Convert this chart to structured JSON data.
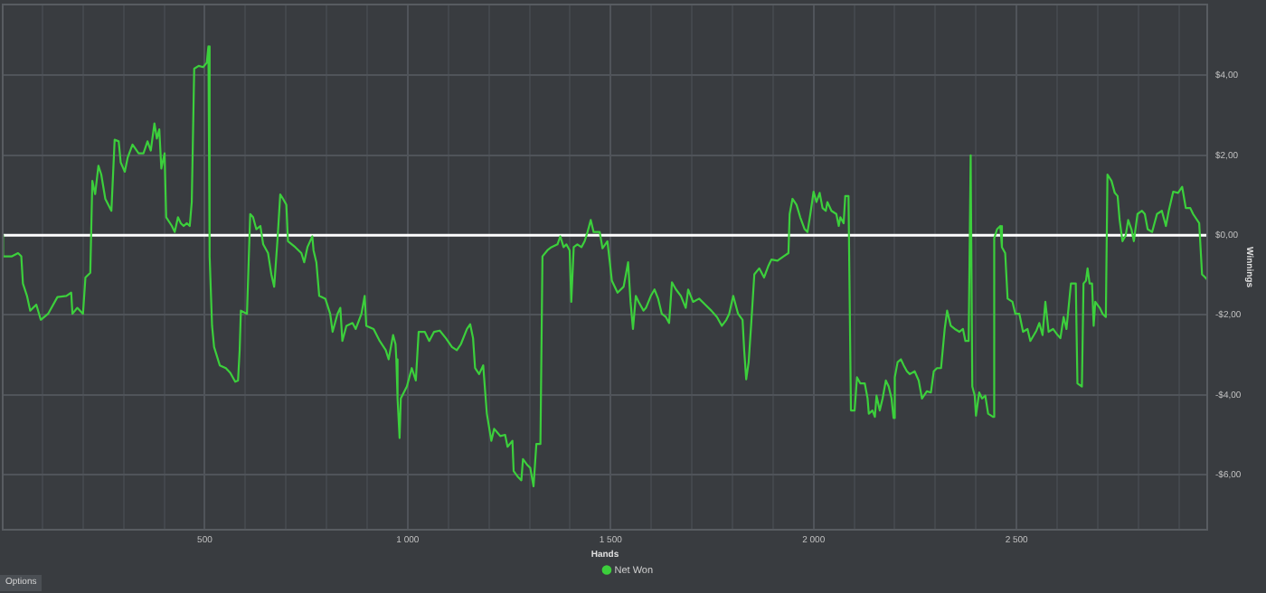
{
  "chart_data": {
    "type": "line",
    "xlabel": "Hands",
    "ylabel": "Winnings",
    "x": [
      0,
      3,
      25,
      40,
      48,
      52,
      62,
      70,
      85,
      96,
      114,
      137,
      159,
      171,
      174,
      186,
      200,
      206,
      218,
      223,
      230,
      238,
      245,
      255,
      270,
      278,
      288,
      293,
      303,
      310,
      322,
      337,
      349,
      359,
      367,
      376,
      382,
      388,
      393,
      401,
      405,
      419,
      426,
      434,
      441,
      448,
      456,
      463,
      468,
      474,
      485,
      496,
      505,
      509,
      512,
      518,
      523,
      537,
      552,
      563,
      575,
      582,
      586,
      589,
      604,
      612,
      619,
      627,
      637,
      644,
      656,
      664,
      671,
      679,
      686,
      693,
      701,
      705,
      723,
      738,
      745,
      753,
      765,
      768,
      775,
      782,
      797,
      809,
      815,
      827,
      834,
      839,
      849,
      864,
      872,
      886,
      894,
      898,
      916,
      931,
      946,
      953,
      964,
      970,
      972,
      975,
      980,
      983,
      998,
      1010,
      1020,
      1027,
      1042,
      1053,
      1065,
      1079,
      1094,
      1109,
      1121,
      1131,
      1146,
      1154,
      1161,
      1166,
      1176,
      1186,
      1191,
      1195,
      1206,
      1213,
      1228,
      1240,
      1246,
      1258,
      1261,
      1272,
      1280,
      1284,
      1295,
      1302,
      1310,
      1317,
      1327,
      1332,
      1344,
      1354,
      1369,
      1376,
      1384,
      1391,
      1399,
      1403,
      1409,
      1418,
      1428,
      1436,
      1443,
      1451,
      1458,
      1473,
      1480,
      1492,
      1498,
      1503,
      1517,
      1532,
      1543,
      1549,
      1555,
      1562,
      1569,
      1581,
      1587,
      1599,
      1608,
      1617,
      1626,
      1636,
      1644,
      1651,
      1661,
      1673,
      1685,
      1691,
      1703,
      1718,
      1733,
      1748,
      1762,
      1774,
      1785,
      1792,
      1802,
      1814,
      1825,
      1829,
      1834,
      1840,
      1846,
      1854,
      1866,
      1878,
      1889,
      1896,
      1911,
      1926,
      1938,
      1941,
      1948,
      1958,
      1967,
      1978,
      1985,
      1992,
      2000,
      2007,
      2015,
      2022,
      2030,
      2034,
      2044,
      2056,
      2062,
      2066,
      2074,
      2078,
      2086,
      2092,
      2101,
      2107,
      2115,
      2126,
      2133,
      2136,
      2145,
      2151,
      2155,
      2163,
      2170,
      2178,
      2185,
      2192,
      2197,
      2200,
      2207,
      2215,
      2222,
      2230,
      2237,
      2249,
      2259,
      2267,
      2279,
      2289,
      2296,
      2304,
      2314,
      2323,
      2329,
      2338,
      2348,
      2359,
      2368,
      2374,
      2382,
      2387,
      2391,
      2397,
      2400,
      2408,
      2415,
      2423,
      2430,
      2442,
      2445,
      2452,
      2460,
      2464,
      2472,
      2478,
      2490,
      2497,
      2507,
      2516,
      2527,
      2534,
      2549,
      2556,
      2564,
      2571,
      2579,
      2590,
      2601,
      2608,
      2616,
      2623,
      2634,
      2646,
      2650,
      2661,
      2665,
      2671,
      2675,
      2680,
      2686,
      2690,
      2694,
      2705,
      2712,
      2720,
      2724,
      2734,
      2742,
      2749,
      2754,
      2761,
      2769,
      2775,
      2783,
      2789,
      2798,
      2809,
      2816,
      2823,
      2834,
      2846,
      2858,
      2868,
      2875,
      2886,
      2898,
      2908,
      2917,
      2928,
      2935,
      2950,
      2957,
      2965,
      2972
    ],
    "series": [
      {
        "name": "Net Won",
        "color": "#3ccf3c",
        "values": [
          0.0,
          -0.53,
          -0.53,
          -0.45,
          -0.53,
          -1.21,
          -1.52,
          -1.89,
          -1.74,
          -2.12,
          -1.97,
          -1.55,
          -1.52,
          -1.44,
          -1.97,
          -1.82,
          -1.97,
          -1.06,
          -0.94,
          1.36,
          1.03,
          1.74,
          1.52,
          0.91,
          0.61,
          2.39,
          2.35,
          1.82,
          1.59,
          1.94,
          2.27,
          2.05,
          2.05,
          2.35,
          2.12,
          2.8,
          2.42,
          2.65,
          1.67,
          2.05,
          0.45,
          0.23,
          0.08,
          0.45,
          0.3,
          0.23,
          0.3,
          0.23,
          0.83,
          4.17,
          4.24,
          4.21,
          4.32,
          4.73,
          -0.53,
          -2.27,
          -2.8,
          -3.26,
          -3.33,
          -3.45,
          -3.67,
          -3.64,
          -2.88,
          -1.89,
          -1.97,
          0.53,
          0.45,
          0.15,
          0.23,
          -0.23,
          -0.45,
          -0.98,
          -1.29,
          -0.15,
          1.02,
          0.91,
          0.76,
          -0.15,
          -0.3,
          -0.45,
          -0.68,
          -0.3,
          -0.03,
          -0.38,
          -0.68,
          -1.52,
          -1.59,
          -1.97,
          -2.42,
          -1.97,
          -1.82,
          -2.65,
          -2.27,
          -2.2,
          -2.35,
          -1.97,
          -1.52,
          -2.27,
          -2.35,
          -2.65,
          -2.88,
          -3.11,
          -2.5,
          -2.73,
          -3.11,
          -4.09,
          -5.08,
          -4.09,
          -3.79,
          -3.33,
          -3.64,
          -2.42,
          -2.42,
          -2.65,
          -2.42,
          -2.39,
          -2.58,
          -2.8,
          -2.88,
          -2.73,
          -2.35,
          -2.23,
          -2.58,
          -3.33,
          -3.48,
          -3.26,
          -3.94,
          -4.47,
          -5.15,
          -4.85,
          -5.03,
          -5.0,
          -5.3,
          -5.15,
          -5.91,
          -6.06,
          -6.14,
          -5.61,
          -5.76,
          -5.83,
          -6.29,
          -5.23,
          -5.23,
          -0.53,
          -0.38,
          -0.3,
          -0.23,
          -0.03,
          -0.3,
          -0.23,
          -0.38,
          -1.67,
          -0.3,
          -0.23,
          -0.3,
          -0.15,
          0.08,
          0.38,
          0.08,
          0.08,
          -0.33,
          -0.15,
          -0.68,
          -1.14,
          -1.44,
          -1.29,
          -0.68,
          -1.67,
          -2.35,
          -1.52,
          -1.67,
          -1.89,
          -1.82,
          -1.52,
          -1.36,
          -1.59,
          -1.97,
          -2.05,
          -2.2,
          -1.18,
          -1.36,
          -1.52,
          -1.82,
          -1.36,
          -1.67,
          -1.59,
          -1.74,
          -1.89,
          -2.05,
          -2.27,
          -2.12,
          -1.97,
          -1.52,
          -1.97,
          -2.12,
          -2.88,
          -3.61,
          -3.18,
          -2.27,
          -0.98,
          -0.83,
          -1.06,
          -0.76,
          -0.61,
          -0.64,
          -0.53,
          -0.45,
          0.53,
          0.91,
          0.76,
          0.45,
          0.15,
          0.08,
          0.53,
          1.09,
          0.83,
          1.06,
          0.68,
          0.61,
          0.83,
          0.61,
          0.53,
          0.23,
          0.45,
          0.3,
          0.98,
          0.98,
          -4.39,
          -4.39,
          -3.56,
          -3.71,
          -3.71,
          -4.09,
          -4.47,
          -4.39,
          -4.55,
          -4.02,
          -4.39,
          -4.09,
          -3.64,
          -3.79,
          -4.09,
          -4.58,
          -3.56,
          -3.18,
          -3.11,
          -3.26,
          -3.41,
          -3.48,
          -3.41,
          -3.64,
          -4.09,
          -3.91,
          -3.94,
          -3.41,
          -3.33,
          -3.33,
          -2.35,
          -1.89,
          -2.27,
          -2.35,
          -2.42,
          -2.35,
          -2.65,
          -2.65,
          2.0,
          -3.79,
          -4.02,
          -4.52,
          -3.94,
          -4.09,
          -4.02,
          -4.47,
          -4.55,
          -0.08,
          0.15,
          0.23,
          -0.3,
          -0.45,
          -1.59,
          -1.67,
          -1.97,
          -1.97,
          -2.42,
          -2.35,
          -2.65,
          -2.39,
          -2.2,
          -2.5,
          -1.67,
          -2.42,
          -2.35,
          -2.5,
          -2.58,
          -2.05,
          -2.35,
          -1.21,
          -1.21,
          -3.71,
          -3.79,
          -1.21,
          -1.14,
          -0.83,
          -1.21,
          -1.21,
          -2.27,
          -1.67,
          -1.82,
          -1.97,
          -2.05,
          1.52,
          1.36,
          1.06,
          0.98,
          0.38,
          -0.15,
          0.0,
          0.38,
          0.15,
          -0.15,
          0.53,
          0.61,
          0.53,
          0.15,
          0.08,
          0.53,
          0.61,
          0.23,
          0.61,
          1.09,
          1.06,
          1.21,
          0.68,
          0.68,
          0.53,
          0.3,
          -0.98,
          -1.06,
          -1.14
        ]
      }
    ],
    "xlim": [
      0,
      2972
    ],
    "xticks": [
      {
        "value": 100,
        "label": null
      },
      {
        "value": 200,
        "label": null
      },
      {
        "value": 300,
        "label": null
      },
      {
        "value": 400,
        "label": null
      },
      500,
      {
        "value": 600,
        "label": null
      },
      {
        "value": 700,
        "label": null
      },
      {
        "value": 800,
        "label": null
      },
      {
        "value": 900,
        "label": null
      },
      {
        "value": 1000,
        "label": "1 000"
      },
      {
        "value": 1100,
        "label": null
      },
      {
        "value": 1200,
        "label": null
      },
      {
        "value": 1300,
        "label": null
      },
      {
        "value": 1400,
        "label": null
      },
      {
        "value": 1500,
        "label": "1 500"
      },
      {
        "value": 1600,
        "label": null
      },
      {
        "value": 1700,
        "label": null
      },
      {
        "value": 1800,
        "label": null
      },
      {
        "value": 1900,
        "label": null
      },
      {
        "value": 2000,
        "label": "2 000"
      },
      {
        "value": 2100,
        "label": null
      },
      {
        "value": 2200,
        "label": null
      },
      {
        "value": 2300,
        "label": null
      },
      {
        "value": 2400,
        "label": null
      },
      {
        "value": 2500,
        "label": "2 500"
      },
      {
        "value": 2600,
        "label": null
      },
      {
        "value": 2700,
        "label": null
      },
      {
        "value": 2800,
        "label": null
      },
      {
        "value": 2900,
        "label": null
      }
    ],
    "ylim": [
      -7.4,
      5.8
    ],
    "yticks": [
      {
        "value": -6,
        "label": "-$6,00"
      },
      {
        "value": -4,
        "label": "-$4,00"
      },
      {
        "value": -2,
        "label": "-$2,00"
      },
      {
        "value": 0,
        "label": "$0,00"
      },
      {
        "value": 2,
        "label": "$2,00"
      },
      {
        "value": 4,
        "label": "$4,00"
      }
    ],
    "ref_lines": [
      {
        "axis": "y",
        "value": 0,
        "color": "#ffffff"
      }
    ],
    "grid": true,
    "legend": "bottom",
    "annotations": [
      "Options"
    ]
  }
}
